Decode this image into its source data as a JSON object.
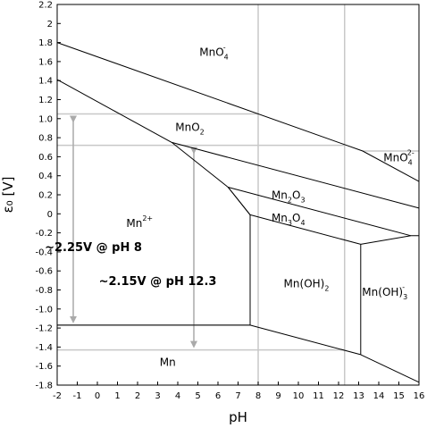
{
  "chart_data": {
    "type": "diagram",
    "subtype": "pourbaix",
    "xlabel": "pH",
    "ylabel": "ε₀ [V]",
    "xlim": [
      -2,
      16
    ],
    "ylim": [
      -1.8,
      2.2
    ],
    "x_ticks": [
      "-2",
      "-1",
      "0",
      "1",
      "2",
      "3",
      "4",
      "5",
      "6",
      "7",
      "8",
      "9",
      "10",
      "11",
      "12",
      "13",
      "14",
      "15",
      "16"
    ],
    "y_ticks": [
      "2.2",
      "2",
      "1.8",
      "1.6",
      "1.4",
      "1.2",
      "1.0",
      "0.8",
      "0.6",
      "0.4",
      "0.2",
      "0",
      "-0.2",
      "-0.4",
      "-0.6",
      "-0.8",
      "-1.0",
      "-1.2",
      "-1.4",
      "-1.6",
      "-1.8"
    ],
    "grid": false,
    "reference_vertical_x": [
      8,
      12.3
    ],
    "reference_horizontal_y": [
      1.05,
      0.72,
      0.66,
      -1.17,
      -1.43
    ],
    "boundaries": [
      {
        "name": "MnO4-/MnO2",
        "points": [
          [
            -2,
            1.8
          ],
          [
            13.2,
            0.66
          ],
          [
            16,
            0.34
          ]
        ]
      },
      {
        "name": "MnO2/Mn2+",
        "points": [
          [
            -2,
            1.41
          ],
          [
            3.7,
            0.75
          ],
          [
            6.5,
            0.28
          ],
          [
            7.6,
            -0.01
          ]
        ]
      },
      {
        "name": "MnO2/Mn2O3",
        "points": [
          [
            3.7,
            0.75
          ],
          [
            16,
            0.06
          ]
        ]
      },
      {
        "name": "Mn2O3/Mn3O4",
        "points": [
          [
            6.5,
            0.28
          ],
          [
            15.6,
            -0.23
          ]
        ]
      },
      {
        "name": "Mn3O4/Mn2+",
        "points": [
          [
            6.5,
            0.28
          ],
          [
            7.6,
            -0.01
          ]
        ]
      },
      {
        "name": "Mn3O4/Mn(OH)2",
        "points": [
          [
            7.6,
            -0.01
          ],
          [
            13.1,
            -0.32
          ]
        ]
      },
      {
        "name": "Mn3O4/Mn(OH)3-",
        "points": [
          [
            13.1,
            -0.32
          ],
          [
            15.6,
            -0.23
          ],
          [
            16,
            -0.23
          ]
        ]
      },
      {
        "name": "Mn2+/Mn(OH)2",
        "points": [
          [
            7.6,
            -0.01
          ],
          [
            7.6,
            -1.17
          ]
        ]
      },
      {
        "name": "Mn(OH)2/Mn(OH)3-",
        "points": [
          [
            13.1,
            -0.32
          ],
          [
            13.1,
            -1.48
          ]
        ]
      },
      {
        "name": "Mn2+/Mn",
        "points": [
          [
            -2,
            -1.17
          ],
          [
            7.6,
            -1.17
          ]
        ]
      },
      {
        "name": "Mn(OH)2/Mn",
        "points": [
          [
            7.6,
            -1.17
          ],
          [
            13.1,
            -1.48
          ]
        ]
      },
      {
        "name": "Mn(OH)3-/Mn",
        "points": [
          [
            13.1,
            -1.48
          ],
          [
            16,
            -1.77
          ]
        ]
      }
    ],
    "species": [
      {
        "base": "MnO",
        "sub": "4",
        "sup": "-"
      },
      {
        "base": "MnO",
        "sub": "2",
        "sup": ""
      },
      {
        "base": "MnO",
        "sub": "4",
        "sup": "2-"
      },
      {
        "base": "Mn",
        "sub": "2",
        "mid": "O",
        "sub2": "3"
      },
      {
        "base": "Mn",
        "sub": "3",
        "mid": "O",
        "sub2": "4"
      },
      {
        "base": "Mn",
        "sub": "",
        "sup": "2+"
      },
      {
        "base": "Mn(OH)",
        "sub": "2",
        "sup": ""
      },
      {
        "base": "Mn(OH)",
        "sub": "3",
        "sup": "-"
      },
      {
        "base": "Mn",
        "sub": "",
        "sup": ""
      }
    ],
    "annotations": [
      {
        "text": "~2.25V @ pH 8",
        "x": -1.2,
        "y_top": 1.05,
        "y_bottom": -1.17
      },
      {
        "text": "~2.15V @ pH 12.3",
        "x": 4.8,
        "y_top": 0.72,
        "y_bottom": -1.43
      }
    ]
  }
}
